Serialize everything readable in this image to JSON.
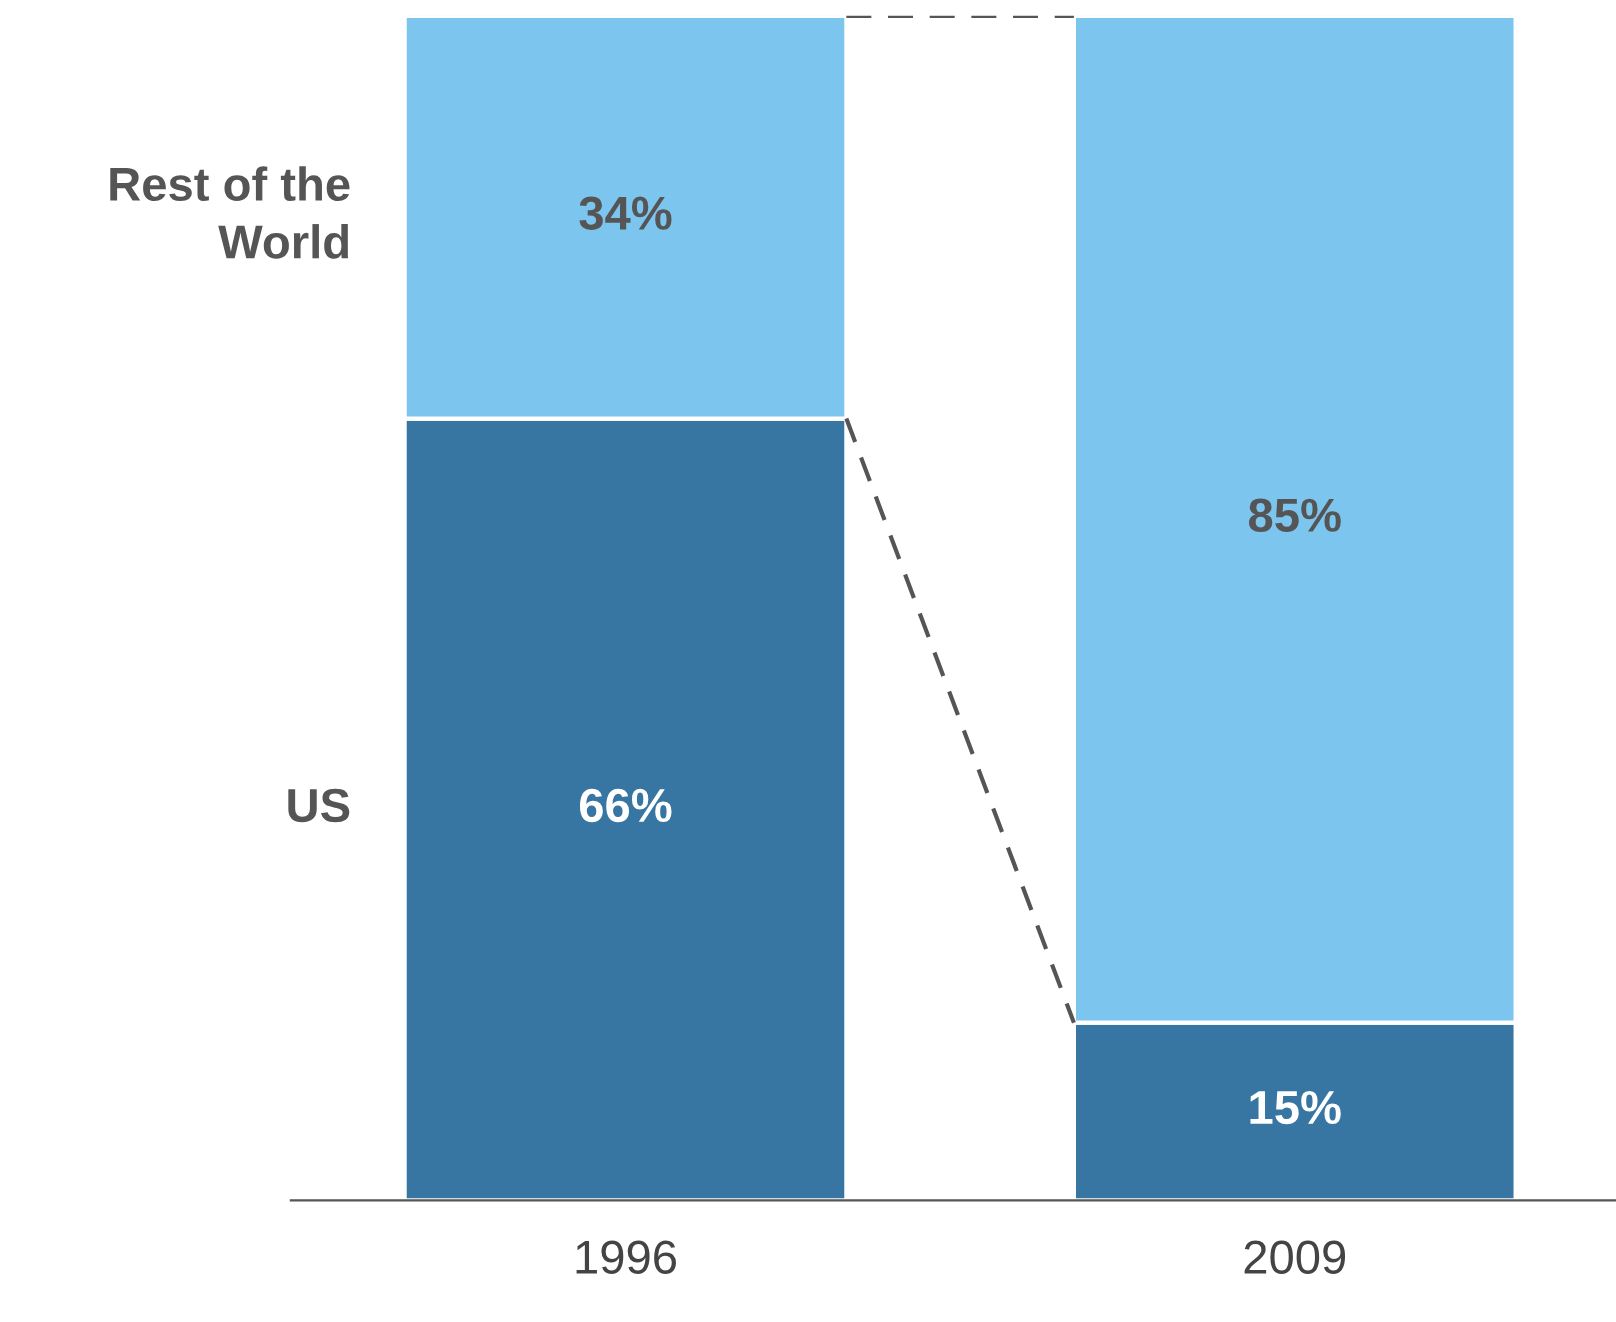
{
  "chart_data": {
    "type": "bar",
    "stacked": true,
    "categories": [
      "1996",
      "2009"
    ],
    "series": [
      {
        "name": "US",
        "color": "#3775a3",
        "values": [
          66,
          15
        ],
        "value_labels": [
          "66%",
          "15%"
        ]
      },
      {
        "name": "Rest of the World",
        "color": "#7cc5ef",
        "values": [
          34,
          85
        ],
        "value_labels": [
          "34%",
          "85%"
        ]
      }
    ],
    "tick_labels": "x",
    "legend": false,
    "grid": false
  }
}
